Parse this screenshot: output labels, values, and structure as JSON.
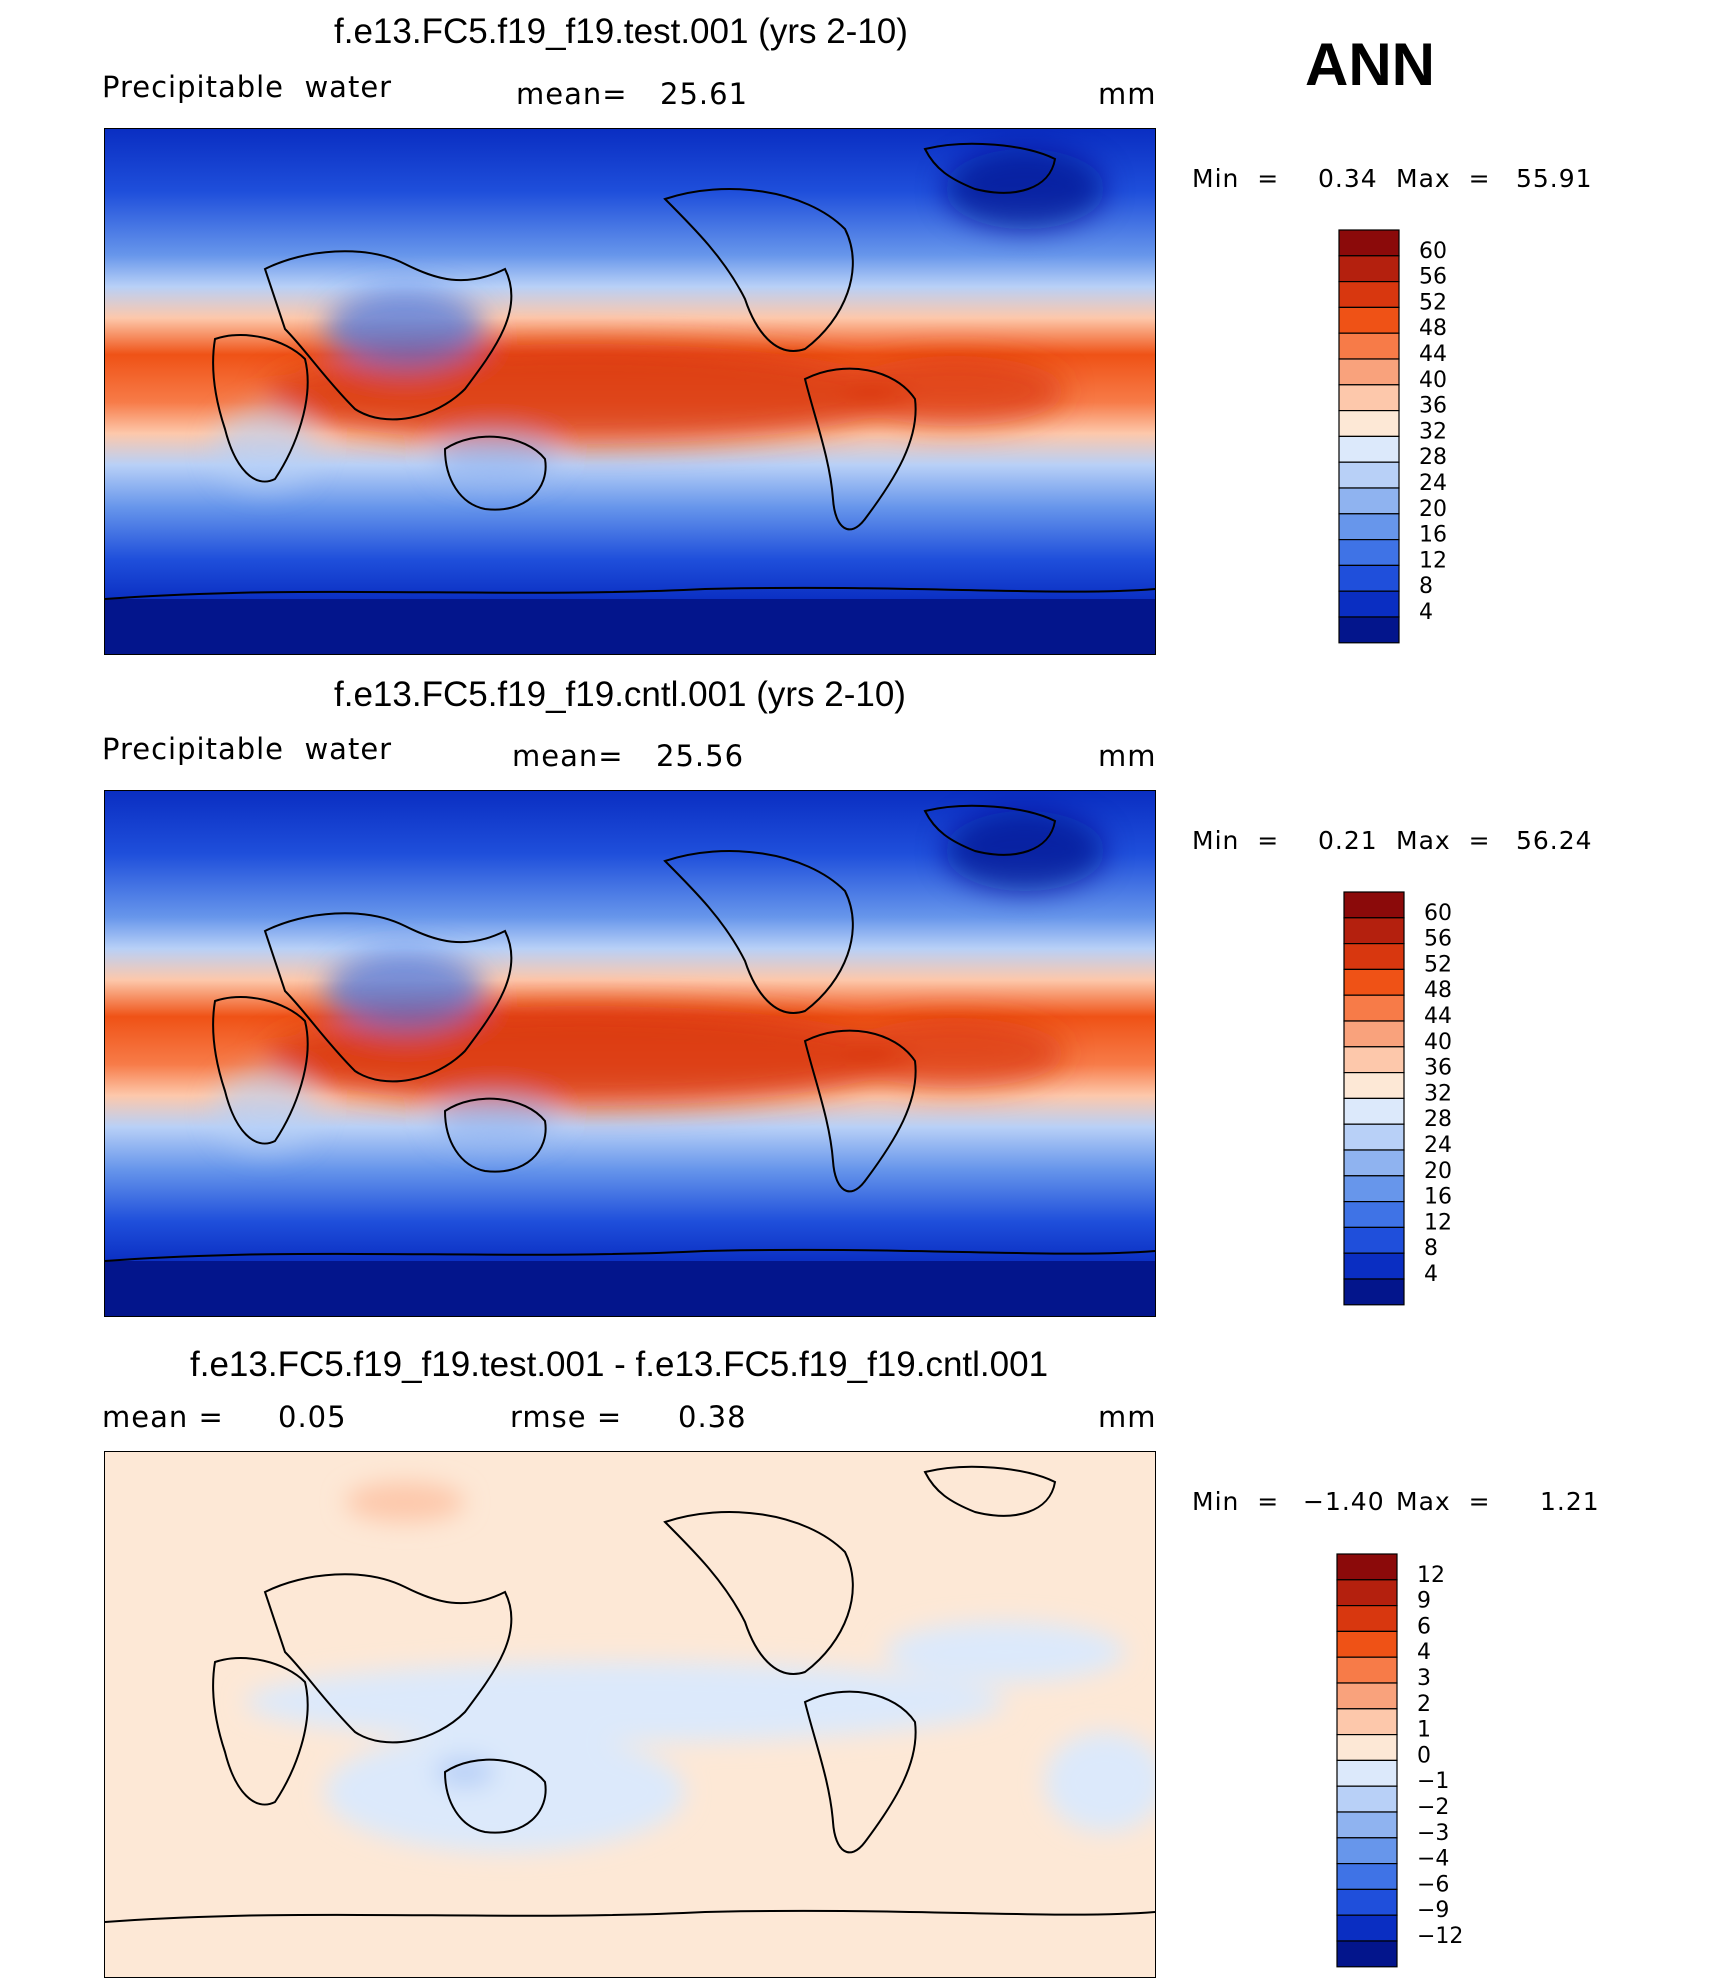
{
  "season": "ANN",
  "panels": [
    {
      "title": "f.e13.FC5.f19_f19.test.001 (yrs 2-10)",
      "variable": "Precipitable  water",
      "stat1_label": "mean=",
      "stat1_value": "25.61",
      "units": "mm",
      "min_label": "Min  =",
      "min_value": "0.34",
      "max_label": "Max  =",
      "max_value": "55.91",
      "colorbar_levels": [
        "60",
        "56",
        "52",
        "48",
        "44",
        "40",
        "36",
        "32",
        "28",
        "24",
        "20",
        "16",
        "12",
        "8",
        "4"
      ],
      "colorbar_colors": [
        "#8b0a0a",
        "#b4200e",
        "#d8370f",
        "#ef5216",
        "#f77b48",
        "#f9a27c",
        "#fdc8ab",
        "#fde8d6",
        "#dce9fb",
        "#b8d0f7",
        "#8fb3f0",
        "#6796eb",
        "#3f73e6",
        "#1f4fdb",
        "#0a2ec2",
        "#03158c"
      ]
    },
    {
      "title": "f.e13.FC5.f19_f19.cntl.001 (yrs 2-10)",
      "variable": "Precipitable  water",
      "stat1_label": "mean=",
      "stat1_value": "25.56",
      "units": "mm",
      "min_label": "Min  =",
      "min_value": "0.21",
      "max_label": "Max  =",
      "max_value": "56.24",
      "colorbar_levels": [
        "60",
        "56",
        "52",
        "48",
        "44",
        "40",
        "36",
        "32",
        "28",
        "24",
        "20",
        "16",
        "12",
        "8",
        "4"
      ],
      "colorbar_colors": [
        "#8b0a0a",
        "#b4200e",
        "#d8370f",
        "#ef5216",
        "#f77b48",
        "#f9a27c",
        "#fdc8ab",
        "#fde8d6",
        "#dce9fb",
        "#b8d0f7",
        "#8fb3f0",
        "#6796eb",
        "#3f73e6",
        "#1f4fdb",
        "#0a2ec2",
        "#03158c"
      ]
    },
    {
      "title": "f.e13.FC5.f19_f19.test.001 - f.e13.FC5.f19_f19.cntl.001",
      "stat1_label": "mean =",
      "stat1_value": "0.05",
      "stat2_label": "rmse =",
      "stat2_value": "0.38",
      "units": "mm",
      "min_label": "Min  =",
      "min_value": "−1.40",
      "max_label": "Max  =",
      "max_value": "1.21",
      "colorbar_levels": [
        "12",
        "9",
        "6",
        "4",
        "3",
        "2",
        "1",
        "0",
        "−1",
        "−2",
        "−3",
        "−4",
        "−6",
        "−9",
        "−12"
      ],
      "colorbar_colors": [
        "#8b0a0a",
        "#b4200e",
        "#d8370f",
        "#ef5216",
        "#f77b48",
        "#f9a27c",
        "#fdc8ab",
        "#fde8d6",
        "#dce9fb",
        "#b8d0f7",
        "#8fb3f0",
        "#6796eb",
        "#3f73e6",
        "#1f4fdb",
        "#0a2ec2",
        "#03158c"
      ]
    }
  ]
}
